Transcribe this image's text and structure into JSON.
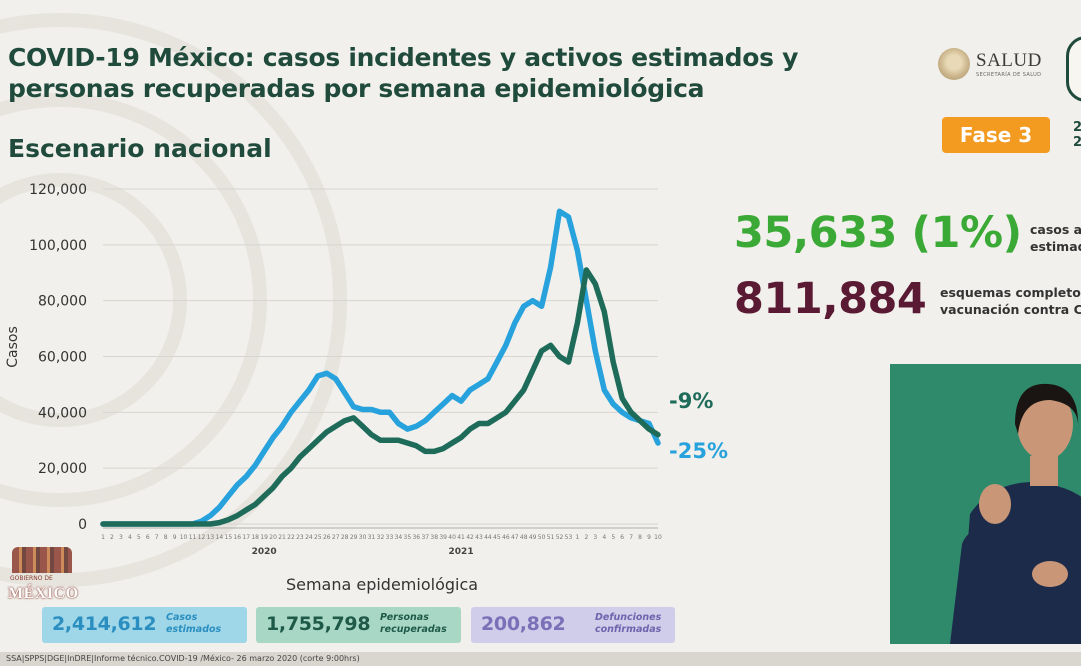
{
  "header": {
    "title_line1": "COVID-19 México: casos incidentes y activos estimados y",
    "title_line2": "personas recuperadas por semana epidemiológica",
    "subtitle": "Escenario nacional",
    "phase_badge": "Fase 3",
    "salud_name": "SALUD",
    "salud_sub": "SECRETARÍA DE SALUD",
    "year_cut": "2\n2"
  },
  "stats": {
    "active_value": "35,633 (1%)",
    "active_desc_line1": "casos ac",
    "active_desc_line2": "estimad",
    "vaccine_value": "811,884",
    "vaccine_desc_line1": "esquemas completo",
    "vaccine_desc_line2": "vacunación contra C"
  },
  "totals": [
    {
      "value": "2,414,612",
      "label_line1": "Casos",
      "label_line2": "estimados"
    },
    {
      "value": "1,755,798",
      "label_line1": "Personas",
      "label_line2": "recuperadas"
    },
    {
      "value": "200,862",
      "label_line1": "Defunciones",
      "label_line2": "confirmadas"
    }
  ],
  "footer": "SSA|SPPS|DGE|InDRE|Informe técnico.COVID-19 /México- 26 marzo 2020 (corte 9:00hrs)",
  "logo": {
    "line1": "GOBIERNO DE",
    "line2": "MÉXICO"
  },
  "colors": {
    "casos_estimados": "#27a2dc",
    "activos": "#1e6b5a",
    "title": "#1f4a3c",
    "phase": "#f39a21",
    "green_stat": "#3aa935",
    "maroon_stat": "#5a1a33"
  },
  "chart_data": {
    "type": "line",
    "xlabel": "Semana epidemiológica",
    "ylabel": "Casos",
    "ylim": [
      0,
      120000
    ],
    "yticks": [
      0,
      20000,
      40000,
      60000,
      80000,
      100000,
      120000
    ],
    "ytick_labels": [
      "0",
      "20,000",
      "40,000",
      "60,000",
      "80,000",
      "100,000",
      "120,000"
    ],
    "year_labels": [
      {
        "text": "2020",
        "week_index": 18
      },
      {
        "text": "2021",
        "week_index": 40
      }
    ],
    "x": [
      1,
      2,
      3,
      4,
      5,
      6,
      7,
      8,
      9,
      10,
      11,
      12,
      13,
      14,
      15,
      16,
      17,
      18,
      19,
      20,
      21,
      22,
      23,
      24,
      25,
      26,
      27,
      28,
      29,
      30,
      31,
      32,
      33,
      34,
      35,
      36,
      37,
      38,
      39,
      40,
      41,
      42,
      43,
      44,
      45,
      46,
      47,
      48,
      49,
      50,
      51,
      52,
      53,
      1,
      2,
      3,
      4,
      5,
      6,
      7,
      8,
      9,
      10
    ],
    "series": [
      {
        "name": "Casos estimados",
        "values": [
          0,
          0,
          0,
          0,
          0,
          0,
          0,
          0,
          0,
          0,
          0,
          1000,
          3000,
          6000,
          10000,
          14000,
          17000,
          21000,
          26000,
          31000,
          35000,
          40000,
          44000,
          48000,
          53000,
          54000,
          52000,
          47000,
          42000,
          41000,
          41000,
          40000,
          40000,
          36000,
          34000,
          35000,
          37000,
          40000,
          43000,
          46000,
          44000,
          48000,
          50000,
          52000,
          58000,
          64000,
          72000,
          78000,
          80000,
          78000,
          92000,
          112000,
          110000,
          98000,
          80000,
          62000,
          48000,
          43000,
          40000,
          38000,
          37000,
          36000,
          29000
        ],
        "end_label": "-25%"
      },
      {
        "name": "Activos estimados",
        "values": [
          0,
          0,
          0,
          0,
          0,
          0,
          0,
          0,
          0,
          0,
          0,
          0,
          0,
          500,
          1500,
          3000,
          5000,
          7000,
          10000,
          13000,
          17000,
          20000,
          24000,
          27000,
          30000,
          33000,
          35000,
          37000,
          38000,
          35000,
          32000,
          30000,
          30000,
          30000,
          29000,
          28000,
          26000,
          26000,
          27000,
          29000,
          31000,
          34000,
          36000,
          36000,
          38000,
          40000,
          44000,
          48000,
          55000,
          62000,
          64000,
          60000,
          58000,
          72000,
          91000,
          86000,
          76000,
          58000,
          45000,
          40000,
          37000,
          34000,
          32000
        ],
        "end_label": "-9%"
      }
    ]
  }
}
